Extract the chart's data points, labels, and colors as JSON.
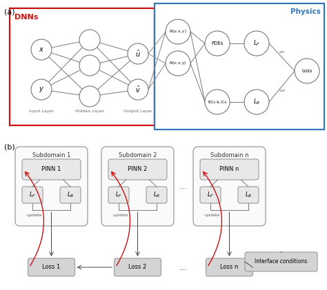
{
  "fig_width": 4.74,
  "fig_height": 4.21,
  "bg_color": "#ffffff",
  "panel_a_label": "(a)",
  "panel_b_label": "(b)",
  "dnn_label": "DNNs",
  "physics_label": "Physics",
  "dnn_box_color": "#cc1111",
  "physics_box_color": "#3377bb",
  "input_layer_label": "Input Layer",
  "hidden_layer_label": "Hidden Layer",
  "output_layer_label": "Output Layer",
  "node_ec": "#777777",
  "subdomain_labels": [
    "Subdomain 1",
    "Subdomain 2",
    "Subdomain n"
  ],
  "pinn_labels": [
    "PINN 1",
    "PINN 2",
    "PINN n"
  ],
  "loss_labels": [
    "Loss 1",
    "Loss 2",
    "Loss n"
  ],
  "lf_label": "$L_F$",
  "lb_label": "$L_B$",
  "update_label": "update",
  "interface_label": "Interface conditions",
  "dots": "...",
  "red_color": "#cc1111",
  "dark_color": "#444444",
  "gray_fc": "#d4d4d4",
  "light_gray_fc": "#e8e8e8"
}
